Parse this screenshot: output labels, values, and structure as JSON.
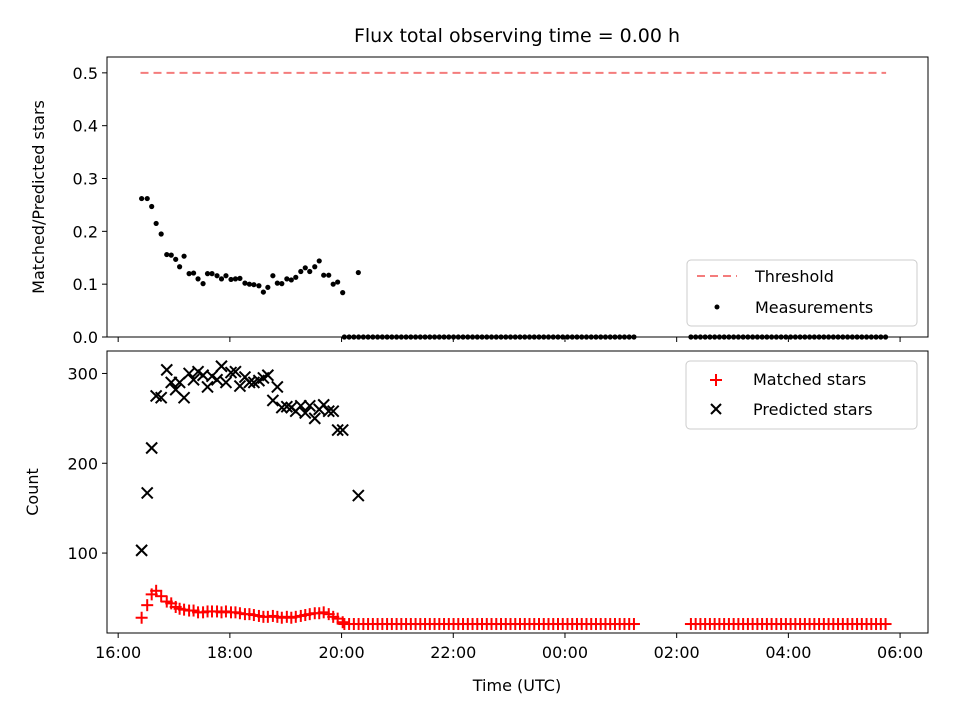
{
  "chart_data": {
    "title": "Flux total observing time = 0.00 h",
    "xlabel": "Time (UTC)",
    "x_unit": "hours since 00:00 UTC on first day",
    "xlim": [
      15.8,
      30.5
    ],
    "xticks": [
      {
        "value": 16,
        "label": "16:00"
      },
      {
        "value": 18,
        "label": "18:00"
      },
      {
        "value": 20,
        "label": "20:00"
      },
      {
        "value": 22,
        "label": "22:00"
      },
      {
        "value": 24,
        "label": "00:00"
      },
      {
        "value": 26,
        "label": "02:00"
      },
      {
        "value": 28,
        "label": "04:00"
      },
      {
        "value": 30,
        "label": "06:00"
      }
    ],
    "colors": {
      "threshold": "#f47c7c",
      "measurements": "#000000",
      "matched": "#ff0000",
      "predicted": "#000000"
    },
    "top": {
      "type": "scatter",
      "ylabel": "Matched/Predicted stars",
      "ylim": [
        0.0,
        0.53
      ],
      "yticks": [
        {
          "value": 0.0,
          "label": "0.0"
        },
        {
          "value": 0.1,
          "label": "0.1"
        },
        {
          "value": 0.2,
          "label": "0.2"
        },
        {
          "value": 0.3,
          "label": "0.3"
        },
        {
          "value": 0.4,
          "label": "0.4"
        },
        {
          "value": 0.5,
          "label": "0.5"
        }
      ],
      "legend_position": "lower-right",
      "threshold": {
        "name": "Threshold",
        "value": 0.5,
        "x_range": [
          16.4,
          29.75
        ]
      },
      "measurements": {
        "name": "Measurements",
        "x": [
          16.42,
          16.52,
          16.6,
          16.68,
          16.77,
          16.87,
          16.95,
          17.03,
          17.1,
          17.18,
          17.27,
          17.35,
          17.43,
          17.52,
          17.6,
          17.68,
          17.77,
          17.85,
          17.93,
          18.02,
          18.1,
          18.18,
          18.27,
          18.35,
          18.43,
          18.52,
          18.6,
          18.68,
          18.77,
          18.85,
          18.93,
          19.02,
          19.1,
          19.18,
          19.27,
          19.35,
          19.43,
          19.52,
          19.6,
          19.68,
          19.77,
          19.85,
          19.93,
          20.02,
          20.3
        ],
        "y": [
          0.262,
          0.262,
          0.247,
          0.215,
          0.195,
          0.156,
          0.155,
          0.147,
          0.133,
          0.153,
          0.12,
          0.121,
          0.11,
          0.101,
          0.12,
          0.12,
          0.116,
          0.11,
          0.116,
          0.109,
          0.11,
          0.111,
          0.102,
          0.1,
          0.099,
          0.097,
          0.085,
          0.094,
          0.116,
          0.102,
          0.101,
          0.11,
          0.108,
          0.113,
          0.124,
          0.131,
          0.124,
          0.133,
          0.144,
          0.117,
          0.117,
          0.1,
          0.104,
          0.084,
          0.122
        ],
        "zero_series": {
          "x_start": 20.05,
          "x_end": 29.75,
          "step": 0.085,
          "gap": [
            25.25,
            26.2
          ],
          "value": 0.0
        }
      }
    },
    "bottom": {
      "type": "scatter",
      "ylabel": "Count",
      "ylim": [
        11,
        325
      ],
      "yticks": [
        {
          "value": 100,
          "label": "100"
        },
        {
          "value": 200,
          "label": "200"
        },
        {
          "value": 300,
          "label": "300"
        }
      ],
      "legend_position": "upper-right",
      "matched": {
        "name": "Matched stars",
        "x": [
          16.42,
          16.52,
          16.6,
          16.68,
          16.77,
          16.87,
          16.95,
          17.03,
          17.1,
          17.18,
          17.27,
          17.35,
          17.43,
          17.52,
          17.6,
          17.68,
          17.77,
          17.85,
          17.93,
          18.02,
          18.1,
          18.18,
          18.27,
          18.35,
          18.43,
          18.52,
          18.6,
          18.68,
          18.77,
          18.85,
          18.93,
          19.02,
          19.1,
          19.18,
          19.27,
          19.35,
          19.43,
          19.52,
          19.6,
          19.68,
          19.77,
          19.85,
          19.93,
          20.02
        ],
        "y": [
          28,
          42,
          54,
          58,
          52,
          46,
          44,
          40,
          38,
          37,
          36,
          36,
          34,
          34,
          35,
          35,
          35,
          34,
          35,
          34,
          34,
          33,
          32,
          32,
          31,
          30,
          29,
          29,
          30,
          29,
          28,
          29,
          28,
          29,
          30,
          31,
          32,
          33,
          33,
          34,
          32,
          29,
          27,
          23
        ],
        "tail": {
          "x_start": 20.05,
          "x_end": 29.75,
          "step": 0.085,
          "gap": [
            25.25,
            26.2
          ],
          "value": 21
        }
      },
      "predicted": {
        "name": "Predicted stars",
        "x": [
          16.42,
          16.52,
          16.6,
          16.68,
          16.77,
          16.87,
          16.95,
          17.03,
          17.1,
          17.18,
          17.27,
          17.35,
          17.43,
          17.52,
          17.6,
          17.68,
          17.77,
          17.85,
          17.93,
          18.02,
          18.1,
          18.18,
          18.27,
          18.35,
          18.43,
          18.52,
          18.6,
          18.68,
          18.77,
          18.85,
          18.93,
          19.02,
          19.1,
          19.18,
          19.27,
          19.35,
          19.43,
          19.52,
          19.6,
          19.68,
          19.77,
          19.85,
          19.93,
          20.02,
          20.3
        ],
        "y": [
          103,
          167,
          217,
          275,
          273,
          304,
          290,
          282,
          290,
          273,
          300,
          293,
          302,
          298,
          285,
          297,
          293,
          308,
          290,
          301,
          302,
          286,
          296,
          290,
          290,
          292,
          295,
          298,
          270,
          285,
          262,
          263,
          262,
          258,
          264,
          256,
          264,
          250,
          260,
          265,
          258,
          258,
          237,
          237,
          164
        ]
      }
    }
  }
}
